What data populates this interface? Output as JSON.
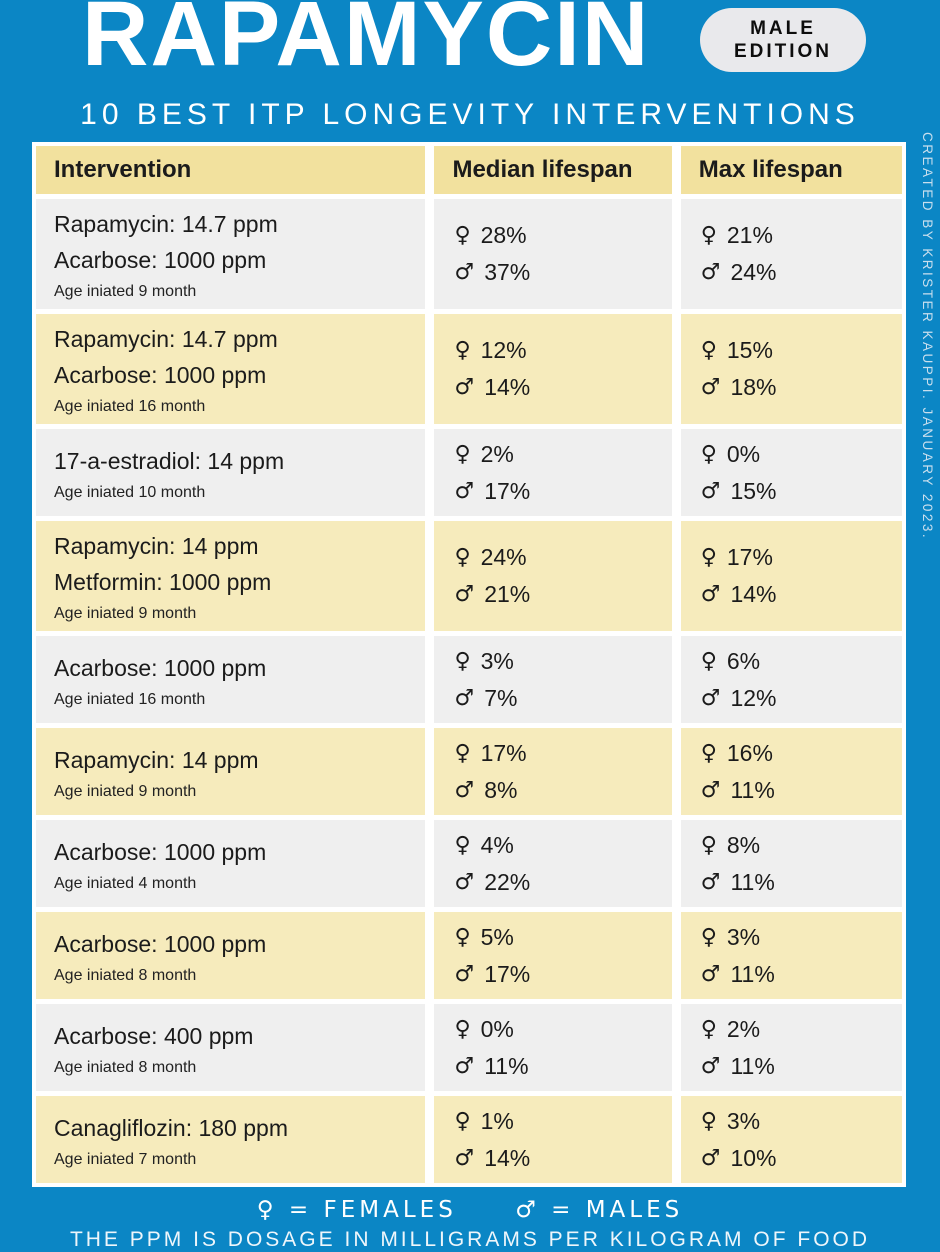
{
  "header": {
    "title": "RAPAMYCIN",
    "badge_line1": "MALE",
    "badge_line2": "EDITION",
    "subtitle": "10 BEST ITP LONGEVITY INTERVENTIONS"
  },
  "credit": "CREATED BY KRISTER KAUPPI. JANUARY 2023.",
  "icons": {
    "female": "♀",
    "male": "♂"
  },
  "colors": {
    "background_blue": "#0b86c5",
    "header_yellow": "#f2e19e",
    "row_cream": "#f6ebbc",
    "row_gray": "#efefef",
    "gap_white": "#ffffff",
    "text_dark": "#1b1b1b",
    "badge_bg": "#e9e9ec",
    "credit_text": "#c9dfee"
  },
  "table": {
    "columns": [
      "Intervention",
      "Median lifespan",
      "Max lifespan"
    ],
    "rows": [
      {
        "lines": [
          "Rapamycin: 14.7 ppm",
          "Acarbose: 1000 ppm"
        ],
        "age": "Age iniated 9 month",
        "median": {
          "female": "28%",
          "male": "37%"
        },
        "max": {
          "female": "21%",
          "male": "24%"
        }
      },
      {
        "lines": [
          "Rapamycin: 14.7 ppm",
          "Acarbose: 1000 ppm"
        ],
        "age": "Age iniated 16 month",
        "median": {
          "female": "12%",
          "male": "14%"
        },
        "max": {
          "female": "15%",
          "male": "18%"
        }
      },
      {
        "lines": [
          "17-a-estradiol: 14 ppm"
        ],
        "age": "Age iniated 10 month",
        "median": {
          "female": "2%",
          "male": "17%"
        },
        "max": {
          "female": "0%",
          "male": "15%"
        }
      },
      {
        "lines": [
          "Rapamycin: 14 ppm",
          "Metformin: 1000 ppm"
        ],
        "age": "Age iniated 9 month",
        "median": {
          "female": "24%",
          "male": "21%"
        },
        "max": {
          "female": "17%",
          "male": "14%"
        }
      },
      {
        "lines": [
          "Acarbose: 1000 ppm"
        ],
        "age": "Age iniated 16 month",
        "median": {
          "female": "3%",
          "male": "7%"
        },
        "max": {
          "female": "6%",
          "male": "12%"
        }
      },
      {
        "lines": [
          "Rapamycin: 14 ppm"
        ],
        "age": "Age iniated 9 month",
        "median": {
          "female": "17%",
          "male": "8%"
        },
        "max": {
          "female": "16%",
          "male": "11%"
        }
      },
      {
        "lines": [
          "Acarbose: 1000 ppm"
        ],
        "age": "Age iniated 4 month",
        "median": {
          "female": "4%",
          "male": "22%"
        },
        "max": {
          "female": "8%",
          "male": "11%"
        }
      },
      {
        "lines": [
          "Acarbose: 1000 ppm"
        ],
        "age": "Age iniated 8 month",
        "median": {
          "female": "5%",
          "male": "17%"
        },
        "max": {
          "female": "3%",
          "male": "11%"
        }
      },
      {
        "lines": [
          "Acarbose: 400 ppm"
        ],
        "age": "Age iniated 8 month",
        "median": {
          "female": "0%",
          "male": "11%"
        },
        "max": {
          "female": "2%",
          "male": "11%"
        }
      },
      {
        "lines": [
          "Canagliflozin: 180 ppm"
        ],
        "age": "Age iniated 7 month",
        "median": {
          "female": "1%",
          "male": "14%"
        },
        "max": {
          "female": "3%",
          "male": "10%"
        }
      }
    ]
  },
  "footer": {
    "legend_female": "♀ = FEMALES",
    "legend_male": "♂ = MALES",
    "note": "THE PPM IS DOSAGE IN MILLIGRAMS PER KILOGRAM OF FOOD"
  },
  "chart_data": {
    "type": "table",
    "title": "RAPAMYCIN (MALE EDITION) — 10 BEST ITP LONGEVITY INTERVENTIONS",
    "columns": [
      "Intervention",
      "Age initiated (month)",
      "Median lifespan female %",
      "Median lifespan male %",
      "Max lifespan female %",
      "Max lifespan male %"
    ],
    "rows": [
      [
        "Rapamycin: 14.7 ppm + Acarbose: 1000 ppm",
        9,
        28,
        37,
        21,
        24
      ],
      [
        "Rapamycin: 14.7 ppm + Acarbose: 1000 ppm",
        16,
        12,
        14,
        15,
        18
      ],
      [
        "17-a-estradiol: 14 ppm",
        10,
        2,
        17,
        0,
        15
      ],
      [
        "Rapamycin: 14 ppm + Metformin: 1000 ppm",
        9,
        24,
        21,
        17,
        14
      ],
      [
        "Acarbose: 1000 ppm",
        16,
        3,
        7,
        6,
        12
      ],
      [
        "Rapamycin: 14 ppm",
        9,
        17,
        8,
        16,
        11
      ],
      [
        "Acarbose: 1000 ppm",
        4,
        4,
        22,
        8,
        11
      ],
      [
        "Acarbose: 1000 ppm",
        8,
        5,
        17,
        3,
        11
      ],
      [
        "Acarbose: 400 ppm",
        8,
        0,
        11,
        2,
        11
      ],
      [
        "Canagliflozin: 180 ppm",
        7,
        1,
        14,
        3,
        10
      ]
    ],
    "notes": "PPM is dosage in milligrams per kilogram of food. ♀ = females, ♂ = males."
  }
}
